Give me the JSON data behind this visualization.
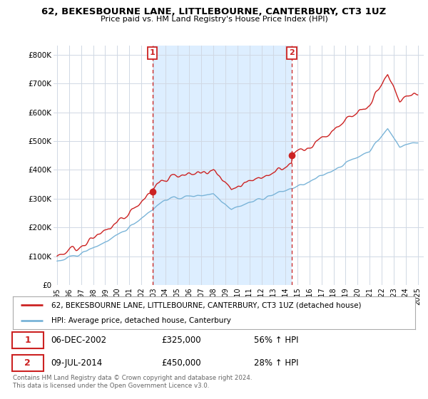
{
  "title": "62, BEKESBOURNE LANE, LITTLEBOURNE, CANTERBURY, CT3 1UZ",
  "subtitle": "Price paid vs. HM Land Registry's House Price Index (HPI)",
  "ylabel_ticks": [
    "£0",
    "£100K",
    "£200K",
    "£300K",
    "£400K",
    "£500K",
    "£600K",
    "£700K",
    "£800K"
  ],
  "ytick_values": [
    0,
    100000,
    200000,
    300000,
    400000,
    500000,
    600000,
    700000,
    800000
  ],
  "ylim": [
    0,
    830000
  ],
  "xlim_start": 1994.7,
  "xlim_end": 2025.5,
  "sale1_x": 2002.92,
  "sale1_y": 325000,
  "sale2_x": 2014.52,
  "sale2_y": 450000,
  "legend_line1": "62, BEKESBOURNE LANE, LITTLEBOURNE, CANTERBURY, CT3 1UZ (detached house)",
  "legend_line2": "HPI: Average price, detached house, Canterbury",
  "ann1_label": "1",
  "ann2_label": "2",
  "footnote": "Contains HM Land Registry data © Crown copyright and database right 2024.\nThis data is licensed under the Open Government Licence v3.0.",
  "hpi_color": "#7ab4d8",
  "sale_color": "#cc2222",
  "shade_color": "#ddeeff",
  "background_color": "#ffffff",
  "grid_color": "#d0d8e4",
  "xtick_years": [
    1995,
    1996,
    1997,
    1998,
    1999,
    2000,
    2001,
    2002,
    2003,
    2004,
    2005,
    2006,
    2007,
    2008,
    2009,
    2010,
    2011,
    2012,
    2013,
    2014,
    2015,
    2016,
    2017,
    2018,
    2019,
    2020,
    2021,
    2022,
    2023,
    2024,
    2025
  ]
}
